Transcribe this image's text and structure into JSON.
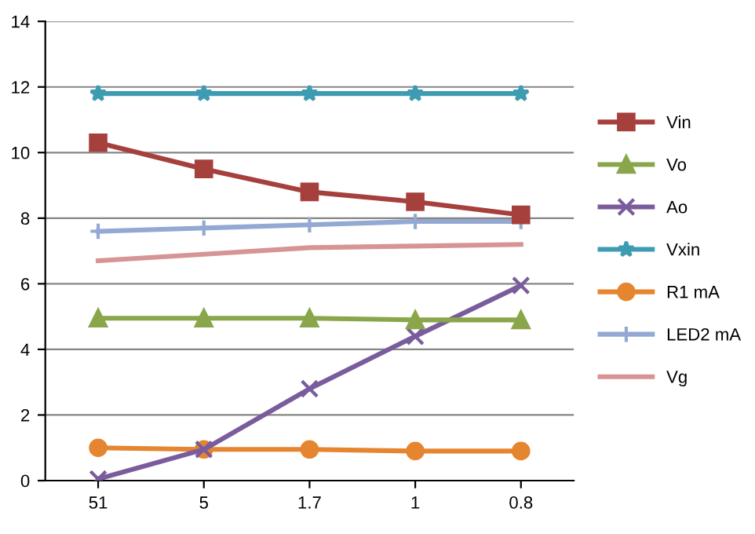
{
  "chart_data": {
    "type": "line",
    "categories": [
      "51",
      "5",
      "1.7",
      "1",
      "0.8"
    ],
    "series": [
      {
        "name": "Vin",
        "color": "#a5403d",
        "marker": "square",
        "values": [
          10.3,
          9.5,
          8.8,
          8.5,
          8.1
        ]
      },
      {
        "name": "Vo",
        "color": "#8aa64b",
        "marker": "triangle",
        "values": [
          4.95,
          4.95,
          4.95,
          4.9,
          4.9
        ]
      },
      {
        "name": "Ao",
        "color": "#7a5c9c",
        "marker": "cross",
        "values": [
          0.05,
          0.95,
          2.8,
          4.4,
          5.95
        ]
      },
      {
        "name": "Vxin",
        "color": "#3d9bb2",
        "marker": "star",
        "values": [
          11.8,
          11.8,
          11.8,
          11.8,
          11.8
        ]
      },
      {
        "name": "R1 mA",
        "color": "#e6852f",
        "marker": "circle",
        "values": [
          1.0,
          0.95,
          0.95,
          0.9,
          0.9
        ]
      },
      {
        "name": "LED2 mA",
        "color": "#93a9d3",
        "marker": "plus",
        "values": [
          7.6,
          7.7,
          7.8,
          7.9,
          7.9
        ]
      },
      {
        "name": "Vg",
        "color": "#d69594",
        "marker": "none",
        "values": [
          6.7,
          6.9,
          7.1,
          7.15,
          7.2
        ]
      }
    ],
    "ylim": [
      0,
      14
    ],
    "yticks": [
      0,
      2,
      4,
      6,
      8,
      10,
      12,
      14
    ],
    "grid": "y",
    "legend": "right",
    "line_style": "solid"
  }
}
